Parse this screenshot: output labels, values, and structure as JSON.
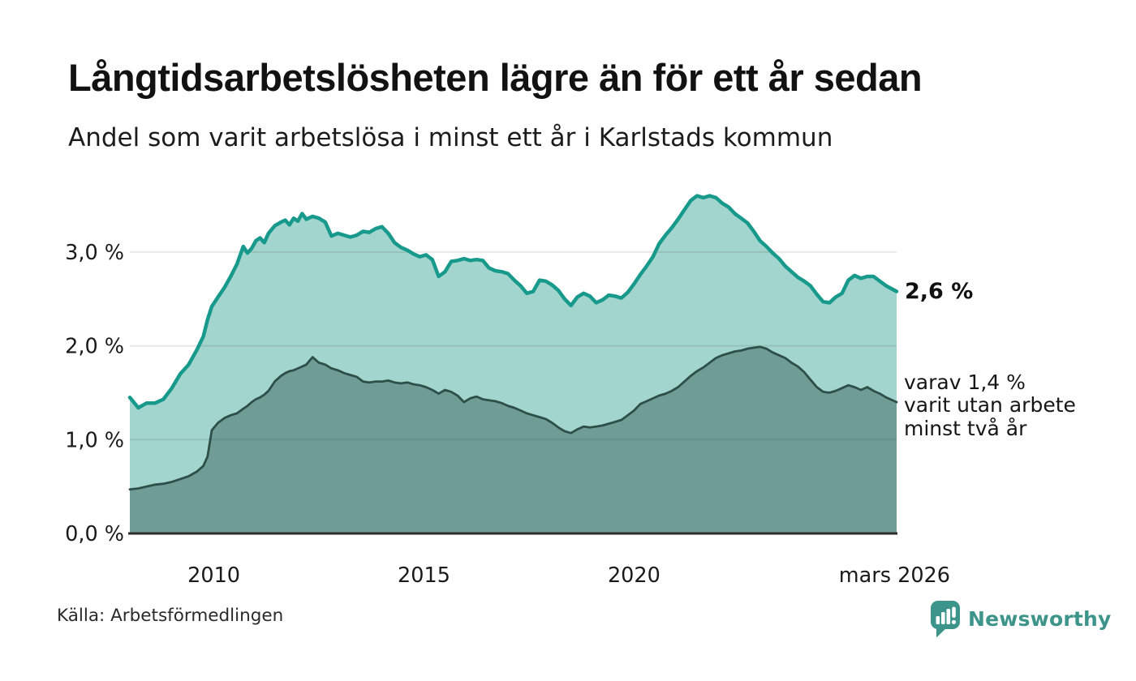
{
  "header": {
    "title": "Långtidsarbetslösheten lägre än för ett år sedan",
    "subtitle": "Andel som varit arbetslösa i minst ett år i Karlstads kommun"
  },
  "annotations": {
    "latest_value": "2,6 %",
    "detail_lines": [
      "varav 1,4 %",
      "varit utan arbete",
      "minst två år"
    ]
  },
  "footer": {
    "source": "Källa: Arbetsförmedlingen",
    "brand": "Newsworthy"
  },
  "colors": {
    "line_1yr": "#17998b",
    "fill_1yr": "#a2d5cd",
    "line_2yr": "#2d4f47",
    "fill_2yr": "#6f9d96",
    "gridline": "rgba(30,30,30,0.10)",
    "axis": "#2b2b2b",
    "tick_text": "#1a1a1a",
    "brand_teal": "#3c948a"
  },
  "chart_data": {
    "type": "area",
    "title": "Långtidsarbetslösheten lägre än för ett år sedan",
    "subtitle": "Andel som varit arbetslösa i minst ett år i Karlstads kommun",
    "unit": "%",
    "grid": true,
    "x_range": [
      2008.0,
      2026.25
    ],
    "y_range": [
      0,
      3.85
    ],
    "y_ticks": [
      {
        "label": "0,0 %",
        "value": 0.0
      },
      {
        "label": "1,0 %",
        "value": 1.0
      },
      {
        "label": "2,0 %",
        "value": 2.0
      },
      {
        "label": "3,0 %",
        "value": 3.0
      }
    ],
    "x_ticks": [
      {
        "label": "2010",
        "x": 2010
      },
      {
        "label": "2015",
        "x": 2015
      },
      {
        "label": "2020",
        "x": 2020
      },
      {
        "label": "mars 2026",
        "x": 2026.2
      }
    ],
    "x": [
      2008.0,
      2008.2,
      2008.4,
      2008.6,
      2008.8,
      2009.0,
      2009.2,
      2009.4,
      2009.6,
      2009.75,
      2009.85,
      2009.95,
      2010.1,
      2010.25,
      2010.4,
      2010.55,
      2010.7,
      2010.8,
      2010.9,
      2011.0,
      2011.1,
      2011.2,
      2011.3,
      2011.45,
      2011.6,
      2011.7,
      2011.8,
      2011.9,
      2012.0,
      2012.1,
      2012.2,
      2012.35,
      2012.5,
      2012.65,
      2012.8,
      2012.95,
      2013.1,
      2013.25,
      2013.4,
      2013.55,
      2013.7,
      2013.85,
      2014.0,
      2014.15,
      2014.3,
      2014.45,
      2014.6,
      2014.75,
      2014.9,
      2015.05,
      2015.2,
      2015.35,
      2015.5,
      2015.65,
      2015.8,
      2015.95,
      2016.1,
      2016.25,
      2016.4,
      2016.55,
      2016.7,
      2016.85,
      2017.0,
      2017.15,
      2017.3,
      2017.45,
      2017.6,
      2017.75,
      2017.9,
      2018.05,
      2018.2,
      2018.35,
      2018.5,
      2018.65,
      2018.8,
      2018.95,
      2019.1,
      2019.25,
      2019.4,
      2019.55,
      2019.7,
      2019.85,
      2020.0,
      2020.15,
      2020.3,
      2020.45,
      2020.6,
      2020.75,
      2020.9,
      2021.05,
      2021.2,
      2021.35,
      2021.5,
      2021.65,
      2021.8,
      2021.95,
      2022.1,
      2022.25,
      2022.4,
      2022.55,
      2022.7,
      2022.85,
      2023.0,
      2023.15,
      2023.3,
      2023.45,
      2023.6,
      2023.75,
      2023.9,
      2024.05,
      2024.2,
      2024.35,
      2024.5,
      2024.65,
      2024.8,
      2024.95,
      2025.1,
      2025.25,
      2025.4,
      2025.55,
      2025.7,
      2025.85,
      2026.0,
      2026.25
    ],
    "series": [
      {
        "name": "Andel arbetslösa minst ett år",
        "end_label": "2,6 %",
        "values": [
          1.45,
          1.34,
          1.39,
          1.39,
          1.43,
          1.55,
          1.7,
          1.8,
          1.96,
          2.1,
          2.28,
          2.42,
          2.52,
          2.62,
          2.74,
          2.87,
          3.06,
          2.99,
          3.04,
          3.12,
          3.15,
          3.1,
          3.2,
          3.28,
          3.32,
          3.34,
          3.29,
          3.36,
          3.33,
          3.41,
          3.35,
          3.38,
          3.36,
          3.32,
          3.17,
          3.2,
          3.18,
          3.16,
          3.18,
          3.22,
          3.21,
          3.25,
          3.27,
          3.2,
          3.1,
          3.05,
          3.02,
          2.98,
          2.95,
          2.97,
          2.92,
          2.74,
          2.79,
          2.9,
          2.91,
          2.93,
          2.91,
          2.92,
          2.91,
          2.83,
          2.8,
          2.79,
          2.77,
          2.7,
          2.64,
          2.56,
          2.58,
          2.7,
          2.69,
          2.65,
          2.59,
          2.5,
          2.43,
          2.52,
          2.56,
          2.53,
          2.46,
          2.49,
          2.54,
          2.53,
          2.51,
          2.57,
          2.66,
          2.76,
          2.85,
          2.95,
          3.09,
          3.18,
          3.26,
          3.35,
          3.45,
          3.55,
          3.6,
          3.58,
          3.6,
          3.58,
          3.52,
          3.48,
          3.41,
          3.36,
          3.31,
          3.22,
          3.12,
          3.06,
          2.99,
          2.93,
          2.85,
          2.79,
          2.73,
          2.69,
          2.64,
          2.55,
          2.47,
          2.46,
          2.52,
          2.56,
          2.7,
          2.75,
          2.72,
          2.74,
          2.74,
          2.69,
          2.64,
          2.58
        ]
      },
      {
        "name": "Andel arbetslösa minst två år",
        "end_label": "varav 1,4 % varit utan arbete minst två år",
        "values": [
          0.47,
          0.48,
          0.5,
          0.52,
          0.53,
          0.55,
          0.58,
          0.61,
          0.66,
          0.72,
          0.82,
          1.1,
          1.18,
          1.23,
          1.26,
          1.28,
          1.33,
          1.36,
          1.4,
          1.43,
          1.45,
          1.48,
          1.52,
          1.62,
          1.68,
          1.71,
          1.73,
          1.74,
          1.76,
          1.78,
          1.8,
          1.88,
          1.82,
          1.8,
          1.76,
          1.74,
          1.71,
          1.69,
          1.67,
          1.62,
          1.61,
          1.62,
          1.62,
          1.63,
          1.61,
          1.6,
          1.61,
          1.59,
          1.58,
          1.56,
          1.53,
          1.49,
          1.53,
          1.51,
          1.47,
          1.4,
          1.44,
          1.46,
          1.43,
          1.42,
          1.41,
          1.39,
          1.36,
          1.34,
          1.31,
          1.28,
          1.26,
          1.24,
          1.22,
          1.18,
          1.13,
          1.09,
          1.07,
          1.11,
          1.14,
          1.13,
          1.14,
          1.15,
          1.17,
          1.19,
          1.21,
          1.26,
          1.31,
          1.38,
          1.41,
          1.44,
          1.47,
          1.49,
          1.52,
          1.56,
          1.62,
          1.68,
          1.73,
          1.77,
          1.82,
          1.87,
          1.9,
          1.92,
          1.94,
          1.95,
          1.97,
          1.98,
          1.99,
          1.97,
          1.93,
          1.9,
          1.87,
          1.82,
          1.78,
          1.72,
          1.64,
          1.56,
          1.51,
          1.5,
          1.52,
          1.55,
          1.58,
          1.56,
          1.53,
          1.56,
          1.52,
          1.49,
          1.45,
          1.4
        ]
      }
    ],
    "legend_position": "annotated-right"
  }
}
